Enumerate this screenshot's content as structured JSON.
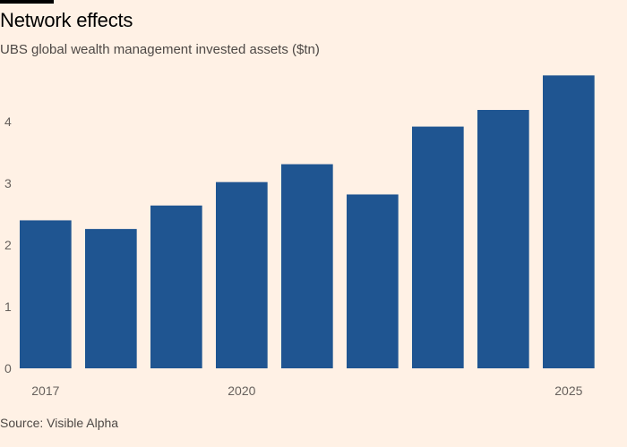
{
  "header": {
    "title": "Network effects",
    "subtitle": "UBS global wealth management invested assets ($tn)"
  },
  "footer": {
    "source": "Source: Visible Alpha"
  },
  "colors": {
    "bar": "#1f5591",
    "background": "#fff1e5"
  },
  "chart_data": {
    "type": "bar",
    "title": "Network effects",
    "subtitle": "UBS global wealth management invested assets ($tn)",
    "categories": [
      "2017",
      "2018",
      "2019",
      "2020",
      "2021",
      "2022",
      "2023",
      "2024",
      "2025"
    ],
    "tick_labels": [
      "2017",
      "",
      "",
      "2020",
      "",
      "",
      "",
      "",
      "2025"
    ],
    "values": [
      2.4,
      2.26,
      2.64,
      3.02,
      3.31,
      2.82,
      3.92,
      4.19,
      4.75
    ],
    "ylim": [
      0,
      4.9
    ],
    "yticks": [
      0,
      1,
      2,
      3,
      4
    ],
    "xlabel": "",
    "ylabel": "",
    "grid": false
  }
}
